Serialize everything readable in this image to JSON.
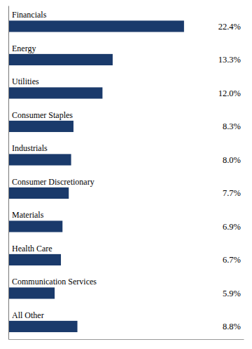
{
  "chart_data": {
    "type": "bar",
    "orientation": "horizontal",
    "categories": [
      "Financials",
      "Energy",
      "Utilities",
      "Consumer Staples",
      "Industrials",
      "Consumer Discretionary",
      "Materials",
      "Health Care",
      "Communication Services",
      "All Other"
    ],
    "values": [
      22.4,
      13.3,
      12.0,
      8.3,
      8.0,
      7.7,
      6.9,
      6.7,
      5.9,
      8.8
    ],
    "value_labels": [
      "22.4%",
      "13.3%",
      "12.0%",
      "8.3%",
      "8.0%",
      "7.7%",
      "6.9%",
      "6.7%",
      "5.9%",
      "8.8%"
    ],
    "data_labels": true,
    "color": "#1a3a6b",
    "xlim": [
      0,
      30
    ],
    "tick_labels": false,
    "grid": false
  }
}
